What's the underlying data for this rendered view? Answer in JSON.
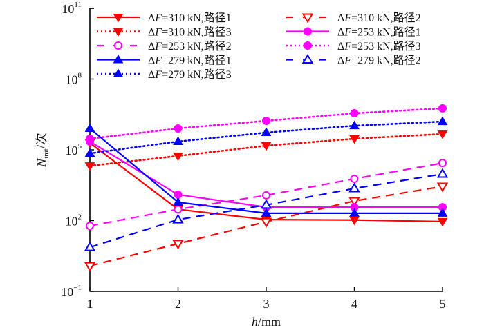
{
  "chart_data": {
    "type": "line",
    "title": "",
    "xlabel": "h/mm",
    "xlabel_italic_part": "h",
    "xlabel_unit": "/mm",
    "ylabel": "N_init/次",
    "ylabel_main": "N",
    "ylabel_sub": "init",
    "ylabel_unit": "/次",
    "y_scale": "log",
    "xlim": [
      1,
      5
    ],
    "ylim": [
      0.1,
      100000000000
    ],
    "x_ticks": [
      1,
      2,
      3,
      4,
      5
    ],
    "x_tick_labels": [
      "1",
      "2",
      "3",
      "4",
      "5"
    ],
    "y_ticks": [
      {
        "base": "10",
        "exp": "−1",
        "value": 0.1
      },
      {
        "base": "10",
        "exp": "2",
        "value": 100
      },
      {
        "base": "10",
        "exp": "5",
        "value": 100000
      },
      {
        "base": "10",
        "exp": "8",
        "value": 100000000
      },
      {
        "base": "10",
        "exp": "11",
        "value": 100000000000
      }
    ],
    "grid": false,
    "legend_position": "top",
    "x": [
      1,
      2,
      3,
      4,
      5
    ],
    "series": [
      {
        "name": "ΔF=310 kN,路径1",
        "load": "310 kN",
        "path": "路径1",
        "color": "#ff0000",
        "dash": "solid",
        "marker": "triangle-down-filled",
        "values": [
          195000,
          300,
          110,
          105,
          91
        ]
      },
      {
        "name": "ΔF=310 kN,路径2",
        "load": "310 kN",
        "path": "路径2",
        "color": "#ff0000",
        "dash": "dashed",
        "marker": "triangle-down-open",
        "values": [
          1.2,
          10.5,
          89,
          680,
          2800
        ]
      },
      {
        "name": "ΔF=310 kN,路径3",
        "load": "310 kN",
        "path": "路径3",
        "color": "#ff0000",
        "dash": "dotted",
        "marker": "triangle-down-filled",
        "values": [
          21000,
          55000,
          150000,
          295000,
          470000
        ]
      },
      {
        "name": "ΔF=253 kN,路径1",
        "load": "253 kN",
        "path": "路径1",
        "color": "#ff00ff",
        "dash": "solid",
        "marker": "circle-filled",
        "values": [
          225000,
          1260,
          370,
          370,
          370
        ]
      },
      {
        "name": "ΔF=253 kN,路径2",
        "load": "253 kN",
        "path": "路径2",
        "color": "#ff00ff",
        "dash": "dashed",
        "marker": "circle-open",
        "values": [
          60,
          300,
          1180,
          5900,
          27500
        ]
      },
      {
        "name": "ΔF=253 kN,路径3",
        "load": "253 kN",
        "path": "路径3",
        "color": "#ff00ff",
        "dash": "dotted",
        "marker": "circle-filled",
        "values": [
          295000,
          810000,
          1700000,
          3550000,
          5750000
        ]
      },
      {
        "name": "ΔF=279 kN,路径1",
        "load": "279 kN",
        "path": "路径1",
        "color": "#0000ff",
        "dash": "solid",
        "marker": "triangle-up-filled",
        "values": [
          810000,
          600,
          205,
          205,
          205
        ]
      },
      {
        "name": "ΔF=279 kN,路径2",
        "load": "279 kN",
        "path": "路径2",
        "color": "#0000ff",
        "dash": "dashed",
        "marker": "triangle-up-open",
        "values": [
          7.4,
          110,
          460,
          2300,
          9500
        ]
      },
      {
        "name": "ΔF=279 kN,路径3",
        "load": "279 kN",
        "path": "路径3",
        "color": "#0000ff",
        "dash": "dotted",
        "marker": "triangle-up-filled",
        "values": [
          71000,
          225000,
          540000,
          1050000,
          1580000
        ]
      }
    ],
    "legend_order": [
      0,
      1,
      2,
      3,
      4,
      5,
      6,
      7,
      8
    ]
  }
}
